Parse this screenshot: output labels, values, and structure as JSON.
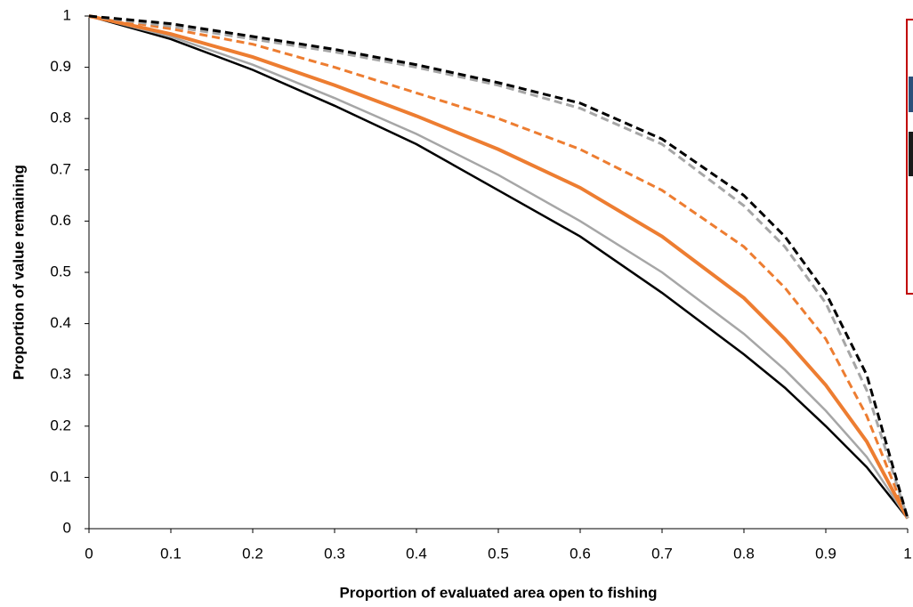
{
  "chart_data": {
    "type": "line",
    "x_label": "Proportion of evaluated area open to fishing",
    "y_label": "Proportion of value remaining",
    "x": [
      0,
      0.1,
      0.2,
      0.3,
      0.4,
      0.5,
      0.6,
      0.7,
      0.8,
      0.85,
      0.9,
      0.95,
      1
    ],
    "series": [
      {
        "color": "#000000",
        "style": "solid",
        "values": [
          1,
          0.955,
          0.895,
          0.825,
          0.75,
          0.66,
          0.57,
          0.46,
          0.34,
          0.275,
          0.2,
          0.12,
          0.02
        ]
      },
      {
        "color": "#a6a6a6",
        "style": "solid",
        "values": [
          1,
          0.96,
          0.905,
          0.84,
          0.77,
          0.69,
          0.6,
          0.5,
          0.38,
          0.31,
          0.23,
          0.14,
          0.02
        ]
      },
      {
        "color": "#ed7d31",
        "style": "solid",
        "values": [
          1,
          0.965,
          0.92,
          0.865,
          0.805,
          0.74,
          0.665,
          0.57,
          0.45,
          0.37,
          0.28,
          0.17,
          0.02
        ]
      },
      {
        "color": "#ed7d31",
        "style": "dashed",
        "values": [
          1,
          0.975,
          0.945,
          0.9,
          0.85,
          0.8,
          0.74,
          0.66,
          0.55,
          0.47,
          0.37,
          0.22,
          0.02
        ]
      },
      {
        "color": "#a6a6a6",
        "style": "dashed",
        "values": [
          1,
          0.98,
          0.955,
          0.93,
          0.9,
          0.865,
          0.82,
          0.75,
          0.63,
          0.55,
          0.44,
          0.27,
          0.02
        ]
      },
      {
        "color": "#000000",
        "style": "dashed",
        "values": [
          1,
          0.985,
          0.96,
          0.935,
          0.905,
          0.87,
          0.83,
          0.76,
          0.65,
          0.57,
          0.46,
          0.3,
          0.02
        ]
      }
    ],
    "xlim": [
      0,
      1
    ],
    "ylim": [
      0,
      1
    ],
    "xticks": [
      0,
      0.1,
      0.2,
      0.3,
      0.4,
      0.5,
      0.6,
      0.7,
      0.8,
      0.9,
      1
    ],
    "yticks": [
      0,
      0.1,
      0.2,
      0.3,
      0.4,
      0.5,
      0.6,
      0.7,
      0.8,
      0.9,
      1
    ],
    "grid": false
  }
}
